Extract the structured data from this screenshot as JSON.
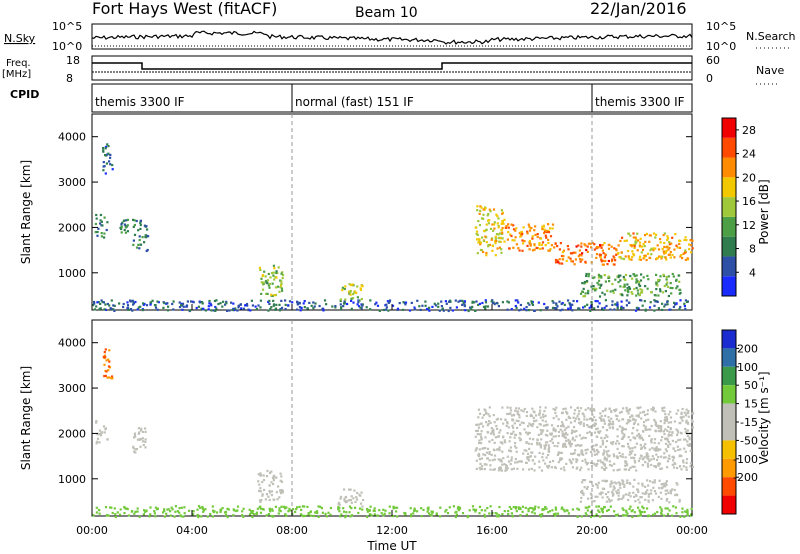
{
  "header": {
    "station": "Fort Hays West (fitACF)",
    "beam": "Beam 10",
    "date": "22/Jan/2016"
  },
  "labels": {
    "nsky": "N.Sky",
    "freq": "Freq.",
    "mhz": "[MHz]",
    "cpid": "CPID",
    "nsearch": "N.Search",
    "nave": "Nave",
    "slant_range": "Slant Range [km]",
    "time_ut": "Time UT",
    "power": "Power [dB]",
    "velocity": "Velocity [m s⁻¹]"
  },
  "noise_panel": {
    "left_ticks": [
      "10^5",
      "10^0"
    ],
    "right_ticks": [
      "10^5",
      "10^0"
    ]
  },
  "freq_panel": {
    "left_ticks": [
      "18",
      "8"
    ],
    "right_ticks": [
      "60",
      "0"
    ]
  },
  "cpid_segments": [
    {
      "label": "themis 3300 IF",
      "start_hour": 0,
      "end_hour": 8
    },
    {
      "label": "normal (fast) 151 IF",
      "start_hour": 8,
      "end_hour": 20
    },
    {
      "label": "themis 3300 IF",
      "start_hour": 20,
      "end_hour": 24
    }
  ],
  "colors": {
    "power_scale": [
      "#1a2bff",
      "#2d4fa5",
      "#2f7d4e",
      "#4d9f45",
      "#9fc83a",
      "#f2c800",
      "#ff8c00",
      "#ff4a00",
      "#f00000"
    ],
    "velocity_scale": [
      "#f00000",
      "#ff4a00",
      "#ff9a00",
      "#f5c000",
      "#c0c0b8",
      "#c0c0b8",
      "#72c93a",
      "#3a9a4a",
      "#2e6fa8",
      "#1a2bd0"
    ]
  },
  "chart_data": [
    {
      "type": "heatmap",
      "name": "power",
      "xlabel": "Time UT",
      "ylabel": "Slant Range [km]",
      "x_range_hours": [
        0,
        24
      ],
      "ylim": [
        180,
        4500
      ],
      "x_ticks": [
        "00:00",
        "04:00",
        "08:00",
        "12:00",
        "16:00",
        "20:00",
        "00:00"
      ],
      "y_ticks": [
        1000,
        2000,
        3000,
        4000
      ],
      "colorbar_label": "Power [dB]",
      "colorbar_ticks": [
        4,
        8,
        12,
        16,
        20,
        24,
        28
      ],
      "colorbar_range": [
        0,
        30
      ],
      "regions": [
        {
          "t0": 0.0,
          "t1": 24.0,
          "r0": 180,
          "r1": 420,
          "value": 6
        },
        {
          "t0": 0.1,
          "t1": 0.6,
          "r0": 1800,
          "r1": 2300,
          "value": 10
        },
        {
          "t0": 0.4,
          "t1": 0.8,
          "r0": 3200,
          "r1": 3900,
          "value": 6
        },
        {
          "t0": 1.0,
          "t1": 1.4,
          "r0": 1900,
          "r1": 2200,
          "value": 8
        },
        {
          "t0": 1.6,
          "t1": 2.2,
          "r0": 1500,
          "r1": 2200,
          "value": 8
        },
        {
          "t0": 6.6,
          "t1": 7.6,
          "r0": 500,
          "r1": 1200,
          "value": 14
        },
        {
          "t0": 9.8,
          "t1": 10.8,
          "r0": 400,
          "r1": 800,
          "value": 16
        },
        {
          "t0": 15.3,
          "t1": 16.5,
          "r0": 1400,
          "r1": 2500,
          "value": 18
        },
        {
          "t0": 16.5,
          "t1": 18.5,
          "r0": 1500,
          "r1": 2100,
          "value": 22
        },
        {
          "t0": 18.5,
          "t1": 21.0,
          "r0": 1200,
          "r1": 1700,
          "value": 24
        },
        {
          "t0": 21.0,
          "t1": 24.0,
          "r0": 1300,
          "r1": 1900,
          "value": 20
        },
        {
          "t0": 19.5,
          "t1": 23.5,
          "r0": 500,
          "r1": 1000,
          "value": 12
        }
      ]
    },
    {
      "type": "heatmap",
      "name": "velocity",
      "xlabel": "Time UT",
      "ylabel": "Slant Range [km]",
      "x_range_hours": [
        0,
        24
      ],
      "ylim": [
        180,
        4500
      ],
      "x_ticks": [
        "00:00",
        "04:00",
        "08:00",
        "12:00",
        "16:00",
        "20:00",
        "00:00"
      ],
      "y_ticks": [
        1000,
        2000,
        3000,
        4000
      ],
      "colorbar_label": "Velocity [m s⁻¹]",
      "colorbar_ticks": [
        200,
        100,
        50,
        15,
        -15,
        -50,
        -100,
        -200
      ],
      "regions": [
        {
          "t0": 0.0,
          "t1": 24.0,
          "r0": 180,
          "r1": 420,
          "value": 30
        },
        {
          "t0": 0.1,
          "t1": 0.6,
          "r0": 1800,
          "r1": 2300,
          "value": 0
        },
        {
          "t0": 0.4,
          "t1": 0.8,
          "r0": 3200,
          "r1": 3900,
          "value": -100
        },
        {
          "t0": 1.6,
          "t1": 2.2,
          "r0": 1600,
          "r1": 2200,
          "value": 0
        },
        {
          "t0": 6.6,
          "t1": 7.6,
          "r0": 500,
          "r1": 1200,
          "value": 0
        },
        {
          "t0": 9.8,
          "t1": 10.8,
          "r0": 400,
          "r1": 800,
          "value": 0
        },
        {
          "t0": 15.3,
          "t1": 24.0,
          "r0": 1200,
          "r1": 2600,
          "value": 0
        },
        {
          "t0": 19.5,
          "t1": 23.5,
          "r0": 500,
          "r1": 1000,
          "value": 0
        }
      ]
    }
  ]
}
